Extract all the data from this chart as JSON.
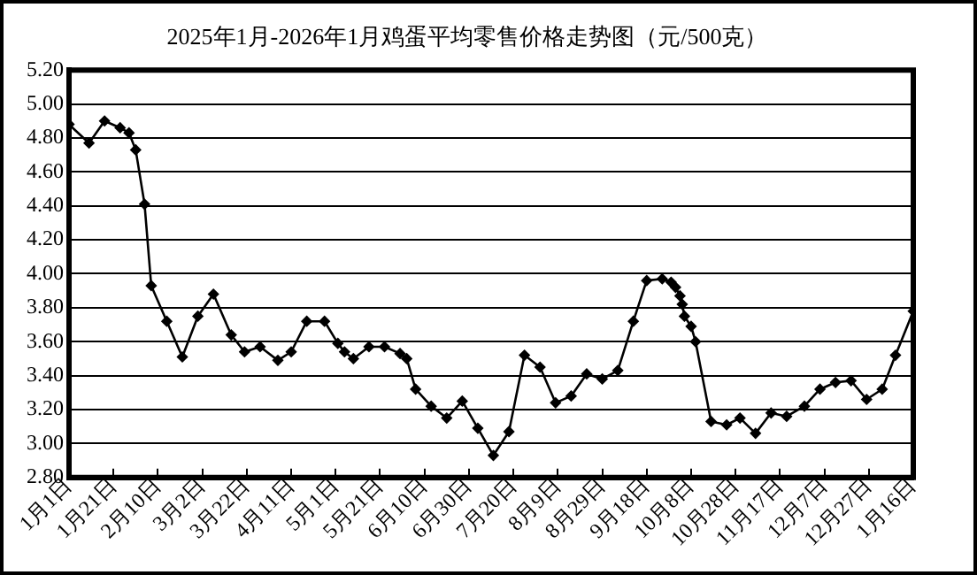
{
  "chart_data": {
    "type": "line",
    "title": "2025年1月-2026年1月鸡蛋平均零售价格走势图（元/500克）",
    "x": [
      "2025-01-01",
      "2025-01-10",
      "2025-01-17",
      "2025-01-24",
      "2025-01-28",
      "2025-01-31",
      "2025-02-04",
      "2025-02-07",
      "2025-02-14",
      "2025-02-21",
      "2025-02-28",
      "2025-03-07",
      "2025-03-15",
      "2025-03-21",
      "2025-03-28",
      "2025-04-05",
      "2025-04-11",
      "2025-04-18",
      "2025-04-26",
      "2025-05-02",
      "2025-05-05",
      "2025-05-09",
      "2025-05-16",
      "2025-05-23",
      "2025-05-30",
      "2025-06-02",
      "2025-06-06",
      "2025-06-13",
      "2025-06-20",
      "2025-06-27",
      "2025-07-04",
      "2025-07-11",
      "2025-07-18",
      "2025-07-25",
      "2025-08-01",
      "2025-08-08",
      "2025-08-15",
      "2025-08-22",
      "2025-08-29",
      "2025-09-05",
      "2025-09-12",
      "2025-09-18",
      "2025-09-25",
      "2025-09-29",
      "2025-10-01",
      "2025-10-03",
      "2025-10-04",
      "2025-10-05",
      "2025-10-08",
      "2025-10-10",
      "2025-10-17",
      "2025-10-24",
      "2025-10-30",
      "2025-11-06",
      "2025-11-13",
      "2025-11-20",
      "2025-11-28",
      "2025-12-05",
      "2025-12-12",
      "2025-12-19",
      "2025-12-26",
      "2026-01-02",
      "2026-01-08",
      "2026-01-16"
    ],
    "series": [
      {
        "color": "#000000",
        "values": [
          4.88,
          4.77,
          4.9,
          4.86,
          4.83,
          4.73,
          4.41,
          3.93,
          3.72,
          3.51,
          3.75,
          3.88,
          3.64,
          3.54,
          3.57,
          3.49,
          3.54,
          3.72,
          3.72,
          3.59,
          3.54,
          3.5,
          3.57,
          3.57,
          3.53,
          3.5,
          3.32,
          3.22,
          3.15,
          3.25,
          3.09,
          2.93,
          3.07,
          3.52,
          3.45,
          3.24,
          3.28,
          3.41,
          3.38,
          3.43,
          3.72,
          3.96,
          3.97,
          3.95,
          3.92,
          3.87,
          3.82,
          3.75,
          3.69,
          3.6,
          3.13,
          3.11,
          3.15,
          3.06,
          3.18,
          3.16,
          3.22,
          3.32,
          3.36,
          3.37,
          3.26,
          3.32,
          3.52,
          3.78
        ]
      }
    ],
    "xlim": [
      "2025-01-01",
      "2026-01-16"
    ],
    "xticks": [
      {
        "value": "2025-01-01",
        "label": "1月1日"
      },
      {
        "value": "2025-01-21",
        "label": "1月21日"
      },
      {
        "value": "2025-02-10",
        "label": "2月10日"
      },
      {
        "value": "2025-03-02",
        "label": "3月2日"
      },
      {
        "value": "2025-03-22",
        "label": "3月22日"
      },
      {
        "value": "2025-04-11",
        "label": "4月11日"
      },
      {
        "value": "2025-05-01",
        "label": "5月1日"
      },
      {
        "value": "2025-05-21",
        "label": "5月21日"
      },
      {
        "value": "2025-06-10",
        "label": "6月10日"
      },
      {
        "value": "2025-06-30",
        "label": "6月30日"
      },
      {
        "value": "2025-07-20",
        "label": "7月20日"
      },
      {
        "value": "2025-08-09",
        "label": "8月9日"
      },
      {
        "value": "2025-08-29",
        "label": "8月29日"
      },
      {
        "value": "2025-09-18",
        "label": "9月18日"
      },
      {
        "value": "2025-10-08",
        "label": "10月8日"
      },
      {
        "value": "2025-10-28",
        "label": "10月28日"
      },
      {
        "value": "2025-11-17",
        "label": "11月17日"
      },
      {
        "value": "2025-12-07",
        "label": "12月7日"
      },
      {
        "value": "2025-12-27",
        "label": "12月27日"
      },
      {
        "value": "2026-01-16",
        "label": "1月16日"
      }
    ],
    "ylim": [
      2.8,
      5.2
    ],
    "yticks": [
      {
        "value": 2.8,
        "label": "2.80"
      },
      {
        "value": 3.0,
        "label": "3.00"
      },
      {
        "value": 3.2,
        "label": "3.20"
      },
      {
        "value": 3.4,
        "label": "3.40"
      },
      {
        "value": 3.6,
        "label": "3.60"
      },
      {
        "value": 3.8,
        "label": "3.80"
      },
      {
        "value": 4.0,
        "label": "4.00"
      },
      {
        "value": 4.2,
        "label": "4.20"
      },
      {
        "value": 4.4,
        "label": "4.40"
      },
      {
        "value": 4.6,
        "label": "4.60"
      },
      {
        "value": 4.8,
        "label": "4.80"
      },
      {
        "value": 5.0,
        "label": "5.00"
      },
      {
        "value": 5.2,
        "label": "5.20"
      }
    ],
    "grid": "y",
    "legend": false,
    "marker": "diamond",
    "line_style": "solid"
  }
}
